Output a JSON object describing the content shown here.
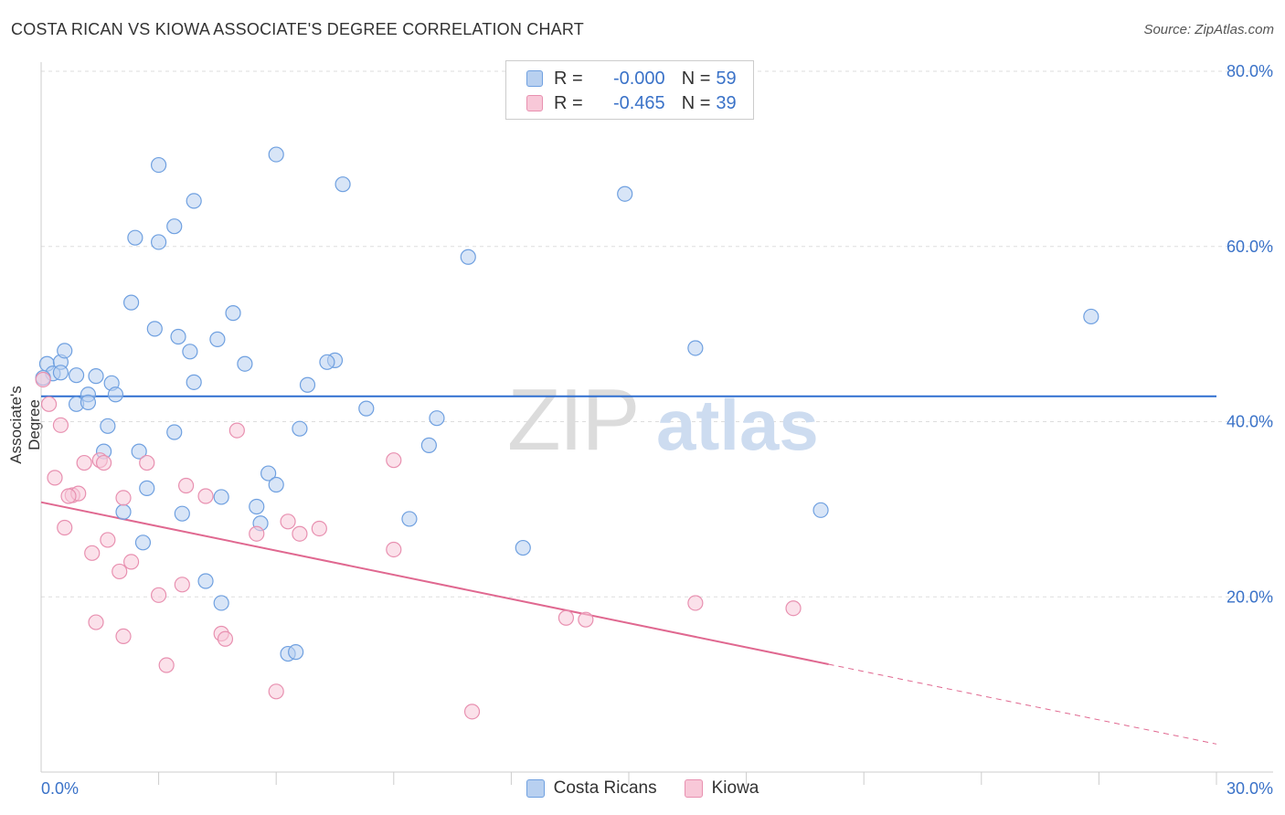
{
  "chart_data": {
    "type": "scatter",
    "title": "COSTA RICAN VS KIOWA ASSOCIATE'S DEGREE CORRELATION CHART",
    "source": "Source: ZipAtlas.com",
    "xlabel": "",
    "ylabel": "Associate's Degree",
    "xlim": [
      0,
      30
    ],
    "ylim": [
      0,
      80
    ],
    "x_tick_labels": [
      "0.0%",
      "30.0%"
    ],
    "y_ticks": [
      20,
      40,
      60,
      80
    ],
    "y_tick_labels": [
      "20.0%",
      "40.0%",
      "60.0%",
      "80.0%"
    ],
    "watermark": "ZIPatlas",
    "legend_top": [
      {
        "r_label": "R =",
        "r_value": "-0.000",
        "n_label": "N =",
        "n_value": "59"
      },
      {
        "r_label": "R =",
        "r_value": "-0.465",
        "n_label": "N =",
        "n_value": "39"
      }
    ],
    "series": [
      {
        "name": "Costa Ricans",
        "color": "#6fa0e0",
        "fill": "#b8d0f0",
        "line_color": "#2f6fd0",
        "trend": {
          "x": [
            0,
            30
          ],
          "y": [
            42.9,
            42.9
          ],
          "solid_to": 30
        },
        "points": [
          [
            0.15,
            46.6
          ],
          [
            0.3,
            45.5
          ],
          [
            0.5,
            46.8
          ],
          [
            0.6,
            48.1
          ],
          [
            0.5,
            45.6
          ],
          [
            0.9,
            45.3
          ],
          [
            1.4,
            45.2
          ],
          [
            1.8,
            44.4
          ],
          [
            1.2,
            43.1
          ],
          [
            1.9,
            43.1
          ],
          [
            0.9,
            42.0
          ],
          [
            1.2,
            42.2
          ],
          [
            1.7,
            39.5
          ],
          [
            1.6,
            36.6
          ],
          [
            2.5,
            36.6
          ],
          [
            3.4,
            38.8
          ],
          [
            2.1,
            29.7
          ],
          [
            2.7,
            32.4
          ],
          [
            3.0,
            69.3
          ],
          [
            3.9,
            65.2
          ],
          [
            3.4,
            62.3
          ],
          [
            2.4,
            61.0
          ],
          [
            3.0,
            60.5
          ],
          [
            2.3,
            53.6
          ],
          [
            2.9,
            50.6
          ],
          [
            3.5,
            49.7
          ],
          [
            3.8,
            48.0
          ],
          [
            4.5,
            49.4
          ],
          [
            4.9,
            52.4
          ],
          [
            3.9,
            44.5
          ],
          [
            5.2,
            46.6
          ],
          [
            5.8,
            34.1
          ],
          [
            6.0,
            32.8
          ],
          [
            5.5,
            30.3
          ],
          [
            5.6,
            28.4
          ],
          [
            6.0,
            70.5
          ],
          [
            7.7,
            67.1
          ],
          [
            7.5,
            47.0
          ],
          [
            7.3,
            46.8
          ],
          [
            6.8,
            44.2
          ],
          [
            6.6,
            39.2
          ],
          [
            4.6,
            31.4
          ],
          [
            3.6,
            29.5
          ],
          [
            2.6,
            26.2
          ],
          [
            4.2,
            21.8
          ],
          [
            4.6,
            19.3
          ],
          [
            6.3,
            13.5
          ],
          [
            6.5,
            13.7
          ],
          [
            8.3,
            41.5
          ],
          [
            10.1,
            40.4
          ],
          [
            9.9,
            37.3
          ],
          [
            9.4,
            28.9
          ],
          [
            10.9,
            58.8
          ],
          [
            14.9,
            66.0
          ],
          [
            12.3,
            25.6
          ],
          [
            16.7,
            48.4
          ],
          [
            19.9,
            29.9
          ],
          [
            26.8,
            52.0
          ],
          [
            0.05,
            45.0
          ]
        ]
      },
      {
        "name": "Kiowa",
        "color": "#e890b0",
        "fill": "#f8c8d8",
        "line_color": "#e06890",
        "trend": {
          "x": [
            0,
            30
          ],
          "y": [
            30.8,
            3.2
          ],
          "solid_to": 20.1
        },
        "points": [
          [
            0.05,
            44.8
          ],
          [
            0.2,
            42.0
          ],
          [
            0.5,
            39.6
          ],
          [
            0.35,
            33.6
          ],
          [
            0.8,
            31.6
          ],
          [
            0.95,
            31.8
          ],
          [
            1.1,
            35.3
          ],
          [
            1.5,
            35.6
          ],
          [
            1.6,
            35.3
          ],
          [
            0.7,
            31.5
          ],
          [
            0.6,
            27.9
          ],
          [
            1.3,
            25.0
          ],
          [
            1.7,
            26.5
          ],
          [
            2.1,
            31.3
          ],
          [
            2.7,
            35.3
          ],
          [
            3.7,
            32.7
          ],
          [
            4.2,
            31.5
          ],
          [
            2.0,
            22.9
          ],
          [
            2.3,
            24.0
          ],
          [
            3.0,
            20.2
          ],
          [
            3.6,
            21.4
          ],
          [
            1.4,
            17.1
          ],
          [
            2.1,
            15.5
          ],
          [
            3.2,
            12.2
          ],
          [
            4.6,
            15.8
          ],
          [
            4.7,
            15.2
          ],
          [
            5.0,
            39.0
          ],
          [
            5.5,
            27.2
          ],
          [
            6.3,
            28.6
          ],
          [
            6.6,
            27.2
          ],
          [
            7.1,
            27.8
          ],
          [
            6.0,
            9.2
          ],
          [
            9.0,
            25.4
          ],
          [
            9.0,
            35.6
          ],
          [
            11.0,
            6.9
          ],
          [
            13.4,
            17.6
          ],
          [
            13.9,
            17.4
          ],
          [
            16.7,
            19.3
          ],
          [
            19.2,
            18.7
          ]
        ]
      }
    ]
  }
}
